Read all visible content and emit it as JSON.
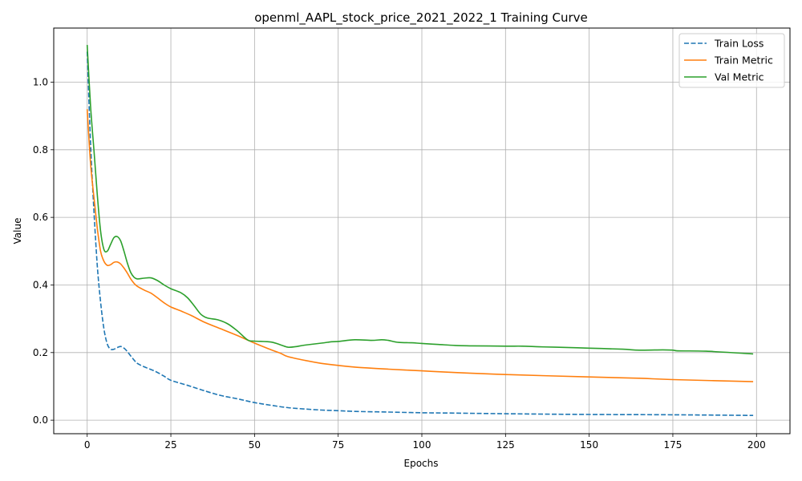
{
  "chart_data": {
    "type": "line",
    "title": "openml_AAPL_stock_price_2021_2022_1 Training Curve",
    "xlabel": "Epochs",
    "ylabel": "Value",
    "xlim": [
      -10,
      210
    ],
    "ylim": [
      -0.04,
      1.16
    ],
    "xticks": [
      0,
      25,
      50,
      75,
      100,
      125,
      150,
      175,
      200
    ],
    "yticks": [
      0.0,
      0.2,
      0.4,
      0.6,
      0.8,
      1.0
    ],
    "ytick_labels": [
      "0.0",
      "0.2",
      "0.4",
      "0.6",
      "0.8",
      "1.0"
    ],
    "grid": true,
    "legend_position": "top-right",
    "series": [
      {
        "name": "Train Loss",
        "color": "#1f77b4",
        "style": "dashed",
        "points": [
          [
            0,
            1.09
          ],
          [
            1,
            0.82
          ],
          [
            2,
            0.62
          ],
          [
            3,
            0.46
          ],
          [
            4,
            0.35
          ],
          [
            5,
            0.27
          ],
          [
            6,
            0.225
          ],
          [
            7,
            0.21
          ],
          [
            8,
            0.21
          ],
          [
            9,
            0.215
          ],
          [
            10,
            0.218
          ],
          [
            11,
            0.213
          ],
          [
            12,
            0.203
          ],
          [
            13,
            0.19
          ],
          [
            14,
            0.178
          ],
          [
            15,
            0.168
          ],
          [
            17,
            0.158
          ],
          [
            20,
            0.146
          ],
          [
            23,
            0.13
          ],
          [
            25,
            0.118
          ],
          [
            30,
            0.103
          ],
          [
            35,
            0.087
          ],
          [
            40,
            0.073
          ],
          [
            45,
            0.063
          ],
          [
            50,
            0.052
          ],
          [
            55,
            0.044
          ],
          [
            60,
            0.037
          ],
          [
            65,
            0.033
          ],
          [
            70,
            0.03
          ],
          [
            75,
            0.028
          ],
          [
            80,
            0.026
          ],
          [
            90,
            0.024
          ],
          [
            100,
            0.022
          ],
          [
            110,
            0.021
          ],
          [
            125,
            0.019
          ],
          [
            150,
            0.017
          ],
          [
            175,
            0.016
          ],
          [
            199,
            0.014
          ]
        ]
      },
      {
        "name": "Train Metric",
        "color": "#ff7f0e",
        "style": "solid",
        "points": [
          [
            0,
            0.92
          ],
          [
            1,
            0.76
          ],
          [
            2,
            0.66
          ],
          [
            3,
            0.57
          ],
          [
            4,
            0.5
          ],
          [
            5,
            0.47
          ],
          [
            6,
            0.458
          ],
          [
            7,
            0.46
          ],
          [
            8,
            0.467
          ],
          [
            9,
            0.468
          ],
          [
            10,
            0.462
          ],
          [
            11,
            0.45
          ],
          [
            12,
            0.435
          ],
          [
            13,
            0.418
          ],
          [
            14,
            0.405
          ],
          [
            15,
            0.396
          ],
          [
            17,
            0.385
          ],
          [
            19,
            0.376
          ],
          [
            21,
            0.362
          ],
          [
            23,
            0.347
          ],
          [
            25,
            0.335
          ],
          [
            28,
            0.323
          ],
          [
            31,
            0.31
          ],
          [
            35,
            0.29
          ],
          [
            40,
            0.27
          ],
          [
            45,
            0.25
          ],
          [
            50,
            0.228
          ],
          [
            55,
            0.208
          ],
          [
            58,
            0.197
          ],
          [
            60,
            0.188
          ],
          [
            65,
            0.177
          ],
          [
            70,
            0.168
          ],
          [
            75,
            0.162
          ],
          [
            80,
            0.157
          ],
          [
            90,
            0.151
          ],
          [
            100,
            0.146
          ],
          [
            110,
            0.141
          ],
          [
            125,
            0.135
          ],
          [
            150,
            0.128
          ],
          [
            165,
            0.124
          ],
          [
            175,
            0.12
          ],
          [
            199,
            0.114
          ]
        ]
      },
      {
        "name": "Val Metric",
        "color": "#2ca02c",
        "style": "solid",
        "points": [
          [
            0,
            1.11
          ],
          [
            1,
            0.93
          ],
          [
            2,
            0.8
          ],
          [
            3,
            0.67
          ],
          [
            4,
            0.56
          ],
          [
            5,
            0.505
          ],
          [
            6,
            0.5
          ],
          [
            7,
            0.52
          ],
          [
            8,
            0.54
          ],
          [
            9,
            0.543
          ],
          [
            10,
            0.53
          ],
          [
            11,
            0.5
          ],
          [
            12,
            0.465
          ],
          [
            13,
            0.437
          ],
          [
            14,
            0.423
          ],
          [
            15,
            0.418
          ],
          [
            17,
            0.42
          ],
          [
            19,
            0.421
          ],
          [
            21,
            0.413
          ],
          [
            23,
            0.4
          ],
          [
            25,
            0.389
          ],
          [
            28,
            0.377
          ],
          [
            30,
            0.362
          ],
          [
            32,
            0.338
          ],
          [
            34,
            0.313
          ],
          [
            36,
            0.302
          ],
          [
            39,
            0.297
          ],
          [
            42,
            0.285
          ],
          [
            45,
            0.263
          ],
          [
            48,
            0.237
          ],
          [
            50,
            0.234
          ],
          [
            55,
            0.231
          ],
          [
            58,
            0.222
          ],
          [
            60,
            0.216
          ],
          [
            62,
            0.217
          ],
          [
            65,
            0.222
          ],
          [
            70,
            0.228
          ],
          [
            73,
            0.232
          ],
          [
            75,
            0.233
          ],
          [
            80,
            0.238
          ],
          [
            85,
            0.236
          ],
          [
            88,
            0.238
          ],
          [
            90,
            0.236
          ],
          [
            93,
            0.23
          ],
          [
            97,
            0.229
          ],
          [
            100,
            0.227
          ],
          [
            105,
            0.224
          ],
          [
            110,
            0.221
          ],
          [
            115,
            0.22
          ],
          [
            125,
            0.219
          ],
          [
            130,
            0.219
          ],
          [
            135,
            0.217
          ],
          [
            140,
            0.216
          ],
          [
            150,
            0.213
          ],
          [
            160,
            0.21
          ],
          [
            165,
            0.207
          ],
          [
            172,
            0.208
          ],
          [
            175,
            0.207
          ],
          [
            177,
            0.205
          ],
          [
            185,
            0.204
          ],
          [
            199,
            0.196
          ]
        ]
      }
    ]
  }
}
